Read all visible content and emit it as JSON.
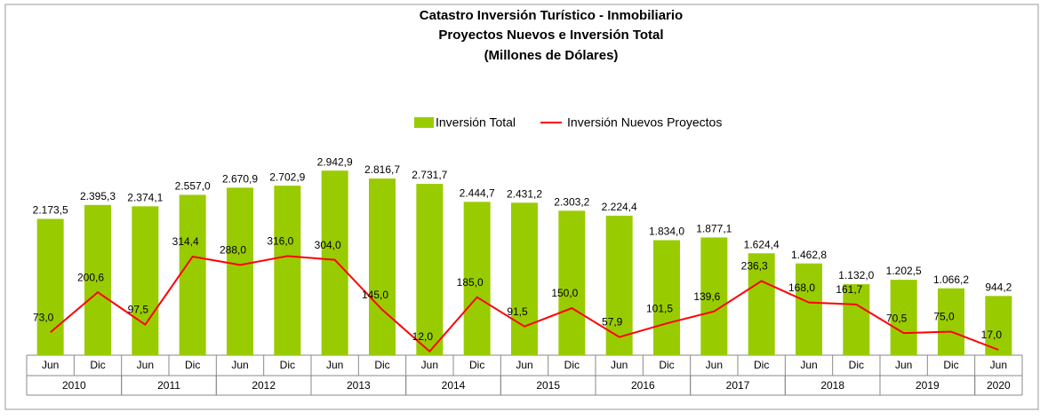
{
  "chart_data": {
    "type": "bar",
    "title": [
      "Catastro Inversión Turístico - Inmobiliario",
      "Proyectos Nuevos e Inversión Total",
      "(Millones de Dólares)"
    ],
    "categories": [
      "Jun",
      "Dic",
      "Jun",
      "Dic",
      "Jun",
      "Dic",
      "Jun",
      "Dic",
      "Jun",
      "Dic",
      "Jun",
      "Dic",
      "Jun",
      "Dic",
      "Jun",
      "Dic",
      "Jun",
      "Dic",
      "Jun",
      "Dic",
      "Jun"
    ],
    "years": [
      "2010",
      "2011",
      "2012",
      "2013",
      "2014",
      "2015",
      "2016",
      "2017",
      "2018",
      "2019",
      "2020"
    ],
    "series": [
      {
        "name": "Inversión Total",
        "type": "bar",
        "color": "#99cc00",
        "values": [
          2173.5,
          2395.3,
          2374.1,
          2557.0,
          2670.9,
          2702.9,
          2942.9,
          2816.7,
          2731.7,
          2444.7,
          2431.2,
          2303.2,
          2224.4,
          1834.0,
          1877.1,
          1624.4,
          1462.8,
          1132.0,
          1202.5,
          1066.2,
          944.2
        ],
        "value_labels": [
          "2.173,5",
          "2.395,3",
          "2.374,1",
          "2.557,0",
          "2.670,9",
          "2.702,9",
          "2.942,9",
          "2.816,7",
          "2.731,7",
          "2.444,7",
          "2.431,2",
          "2.303,2",
          "2.224,4",
          "1.834,0",
          "1.877,1",
          "1.624,4",
          "1.462,8",
          "1.132,0",
          "1.202,5",
          "1.066,2",
          "944,2"
        ]
      },
      {
        "name": "Inversión Nuevos Proyectos",
        "type": "line",
        "axis": "y2",
        "color": "#ff0000",
        "values": [
          73.0,
          200.6,
          97.5,
          314.4,
          288.0,
          316.0,
          304.0,
          145.0,
          12.0,
          185.0,
          91.5,
          150.0,
          57.9,
          101.5,
          139.6,
          236.3,
          168.0,
          161.7,
          70.5,
          75.0,
          17.0
        ],
        "value_labels": [
          "73,0",
          "200,6",
          "97,5",
          "314,4",
          "288,0",
          "316,0",
          "304,0",
          "145,0",
          "12,0",
          "185,0",
          "91,5",
          "150,0",
          "57,9",
          "101,5",
          "139,6",
          "236,3",
          "168,0",
          "161,7",
          "70,5",
          "75,0",
          "17,0"
        ]
      }
    ],
    "ylim": [
      0,
      3200
    ],
    "y2lim": [
      0,
      640
    ],
    "legend": "top"
  }
}
